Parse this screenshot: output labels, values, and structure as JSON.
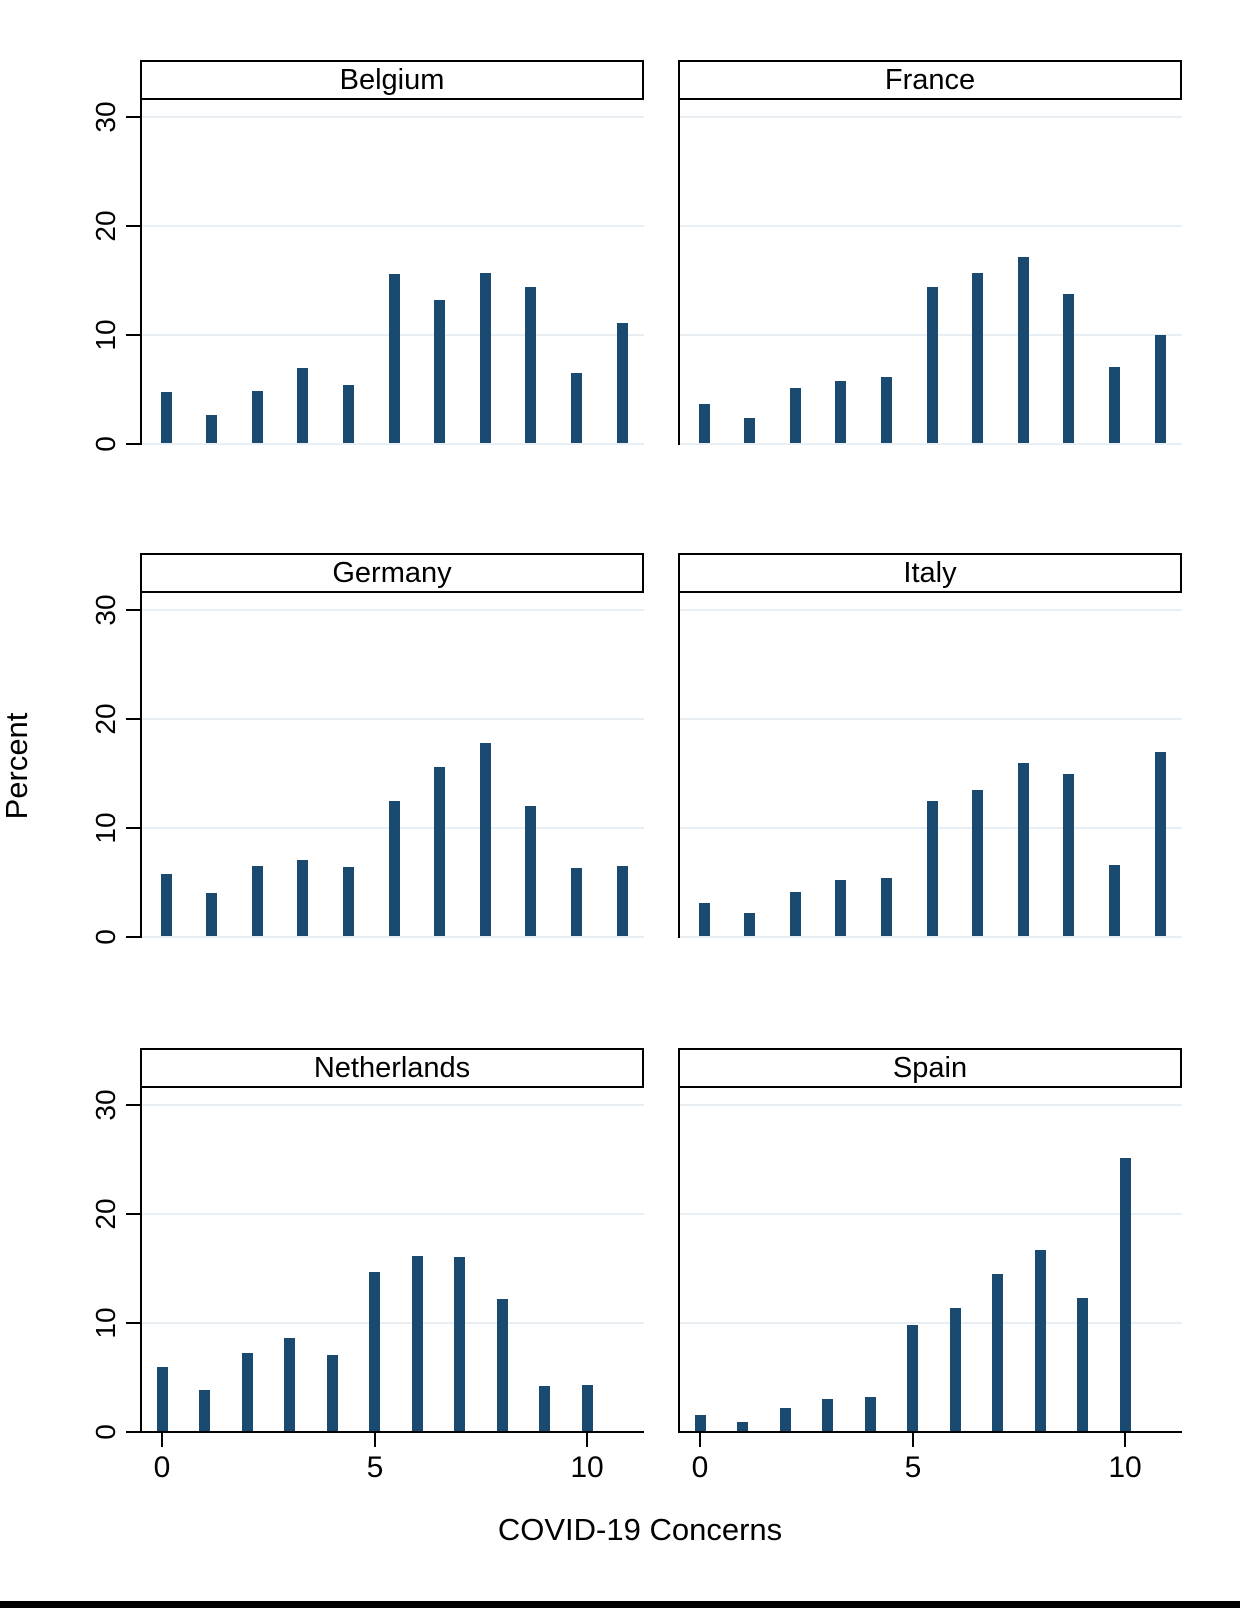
{
  "figure": {
    "ylabel": "Percent",
    "xlabel": "COVID-19 Concerns",
    "bar_color": "#1b4a70",
    "grid_color": "#e7eff5",
    "axis_color": "#000000",
    "y_tick_labels": [
      "0",
      "10",
      "20",
      "30"
    ],
    "x_tick_labels": [
      "0",
      "5",
      "10"
    ]
  },
  "chart_data": {
    "type": "bar",
    "subtype": "histogram small multiples (2 cols x 3 rows)",
    "title": "",
    "xlabel": "COVID-19 Concerns",
    "ylabel": "Percent",
    "x": [
      0,
      1,
      2,
      3,
      4,
      5,
      6,
      7,
      8,
      9,
      10
    ],
    "xticks": [
      0,
      5,
      10
    ],
    "yticks": [
      0,
      10,
      20,
      30
    ],
    "ylim": [
      0,
      33
    ],
    "grid": true,
    "legend_position": "none",
    "panel_order": [
      "Belgium",
      "France",
      "Germany",
      "Italy",
      "Netherlands",
      "Spain"
    ],
    "series": [
      {
        "name": "Belgium",
        "values": [
          4.7,
          2.6,
          4.8,
          6.9,
          5.3,
          15.5,
          13.1,
          15.6,
          14.3,
          6.4,
          11.0
        ]
      },
      {
        "name": "France",
        "values": [
          3.6,
          2.3,
          5.0,
          5.7,
          6.1,
          14.3,
          15.6,
          17.1,
          13.7,
          7.0,
          9.9
        ]
      },
      {
        "name": "Germany",
        "values": [
          5.7,
          3.9,
          6.4,
          7.0,
          6.3,
          12.4,
          15.5,
          17.7,
          11.9,
          6.2,
          6.4
        ]
      },
      {
        "name": "Italy",
        "values": [
          3.0,
          2.1,
          4.0,
          5.1,
          5.3,
          12.4,
          13.4,
          15.9,
          14.9,
          6.5,
          16.9
        ]
      },
      {
        "name": "Netherlands",
        "values": [
          5.9,
          3.8,
          7.2,
          8.5,
          7.0,
          14.6,
          16.1,
          16.0,
          12.1,
          4.1,
          4.2
        ]
      },
      {
        "name": "Spain",
        "values": [
          1.5,
          0.8,
          2.1,
          2.9,
          3.1,
          9.7,
          11.3,
          14.4,
          16.6,
          12.2,
          25.0
        ]
      }
    ]
  }
}
